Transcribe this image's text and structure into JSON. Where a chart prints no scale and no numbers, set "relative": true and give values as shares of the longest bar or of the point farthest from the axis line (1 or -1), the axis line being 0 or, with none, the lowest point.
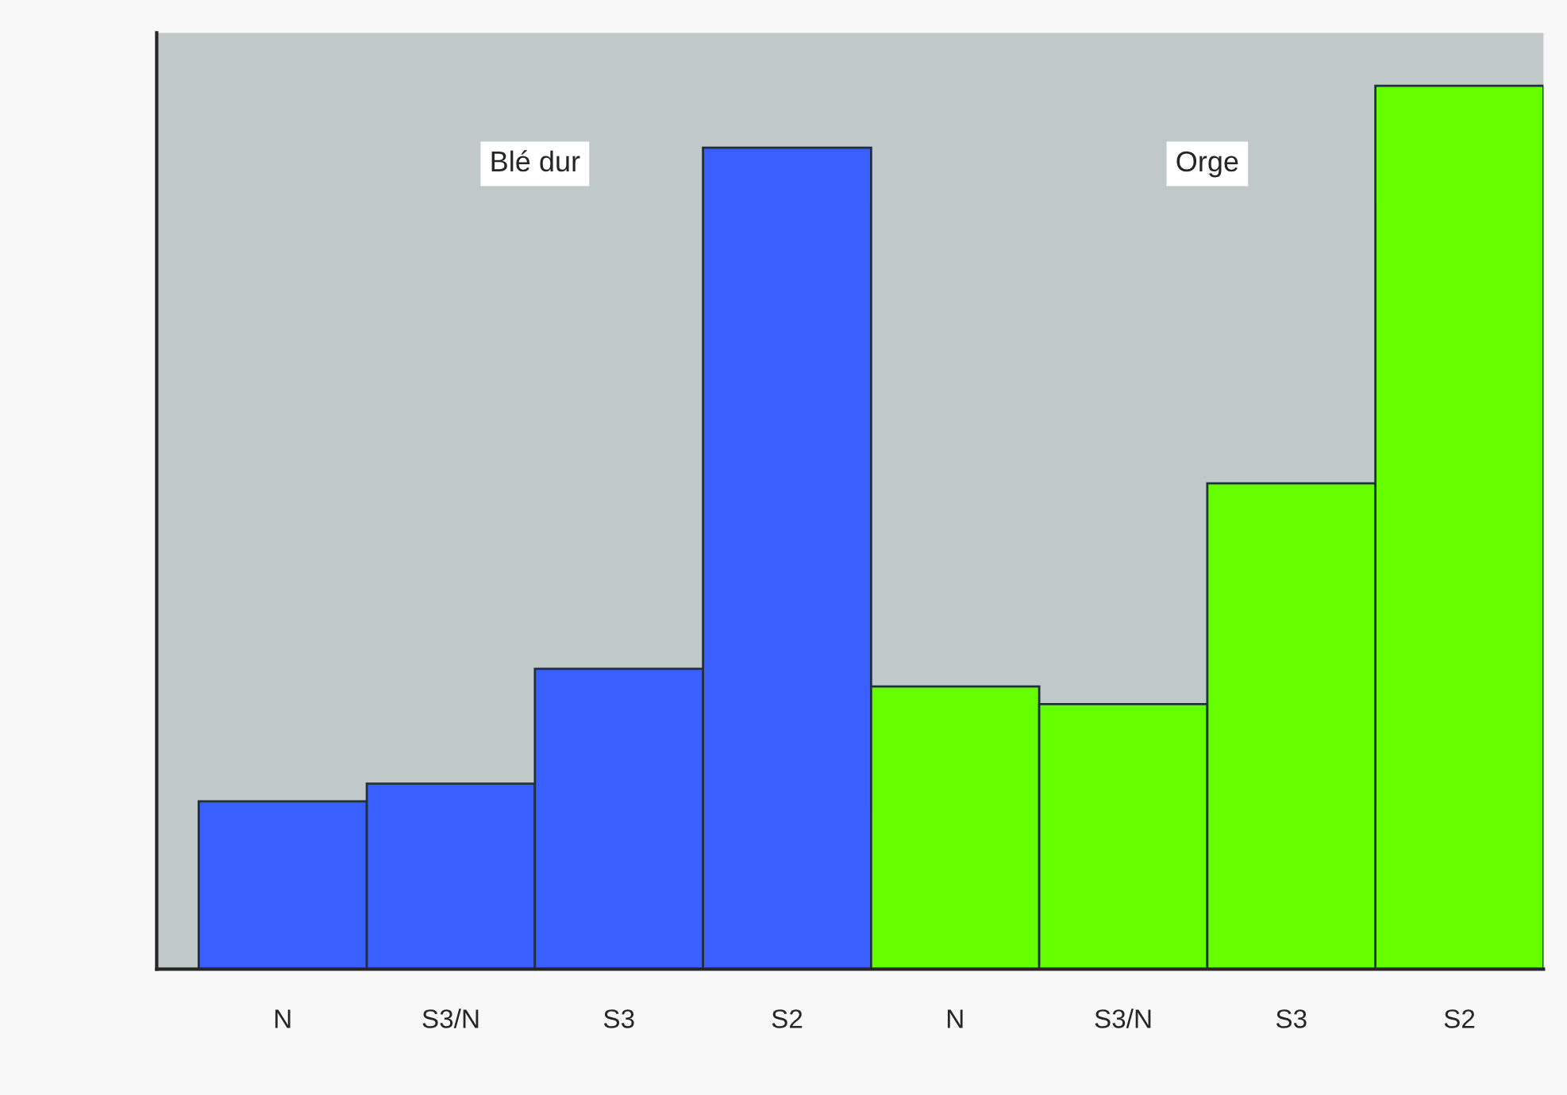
{
  "chart_data": {
    "type": "bar",
    "relative": true,
    "categories": [
      "N",
      "S3/N",
      "S3",
      "S2",
      "N",
      "S3/N",
      "S3",
      "S2"
    ],
    "values": [
      0.19,
      0.21,
      0.34,
      0.93,
      0.32,
      0.3,
      0.55,
      1.0
    ],
    "colors": [
      "#3a5fff",
      "#3a5fff",
      "#3a5fff",
      "#3a5fff",
      "#66ff00",
      "#66ff00",
      "#66ff00",
      "#66ff00"
    ],
    "annotations": [
      "Blé dur",
      "Orge"
    ]
  }
}
